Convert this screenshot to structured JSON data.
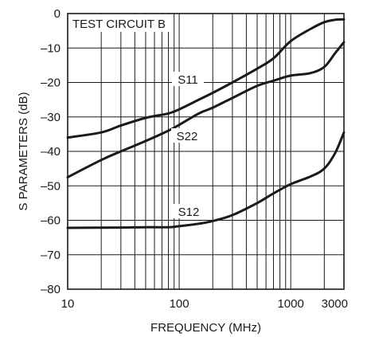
{
  "chart_data": {
    "type": "line",
    "title": "",
    "xlabel": "FREQUENCY (MHz)",
    "ylabel": "S PARAMETERS (dB)",
    "x_scale": "log",
    "xlim": [
      10,
      3000
    ],
    "ylim": [
      -80,
      0
    ],
    "x_ticks": [
      10,
      100,
      1000,
      3000
    ],
    "x_tick_labels": [
      "10",
      "100",
      "1000",
      "3000"
    ],
    "y_ticks": [
      0,
      -10,
      -20,
      -30,
      -40,
      -50,
      -60,
      -70,
      -80
    ],
    "y_tick_labels": [
      "0",
      "–10",
      "–20",
      "–30",
      "–40",
      "–50",
      "–60",
      "–70",
      "–80"
    ],
    "grid": true,
    "annotation": "TEST CIRCUIT B",
    "series": [
      {
        "name": "S11",
        "x": [
          10,
          20,
          30,
          50,
          80,
          100,
          150,
          200,
          300,
          500,
          700,
          1000,
          1500,
          2000,
          2500,
          3000
        ],
        "y": [
          -36,
          -34.5,
          -32.5,
          -30.3,
          -29,
          -27.8,
          -25,
          -23,
          -20,
          -16,
          -13,
          -8,
          -4.5,
          -2.5,
          -1.8,
          -1.7
        ]
      },
      {
        "name": "S22",
        "x": [
          10,
          20,
          30,
          50,
          80,
          100,
          150,
          200,
          300,
          500,
          700,
          1000,
          1500,
          2000,
          2500,
          3000
        ],
        "y": [
          -47.5,
          -42.5,
          -40,
          -37,
          -34,
          -32.3,
          -29,
          -27.3,
          -24.5,
          -21,
          -19.5,
          -18,
          -17.3,
          -15.5,
          -11.5,
          -8.3
        ]
      },
      {
        "name": "S12",
        "x": [
          10,
          30,
          50,
          80,
          100,
          150,
          200,
          300,
          500,
          700,
          1000,
          1500,
          2000,
          2500,
          3000
        ],
        "y": [
          -62.2,
          -62.1,
          -62,
          -62,
          -61.7,
          -61,
          -60.2,
          -58.5,
          -55,
          -52.2,
          -49.5,
          -47.3,
          -45,
          -40.5,
          -34.5
        ]
      }
    ]
  }
}
